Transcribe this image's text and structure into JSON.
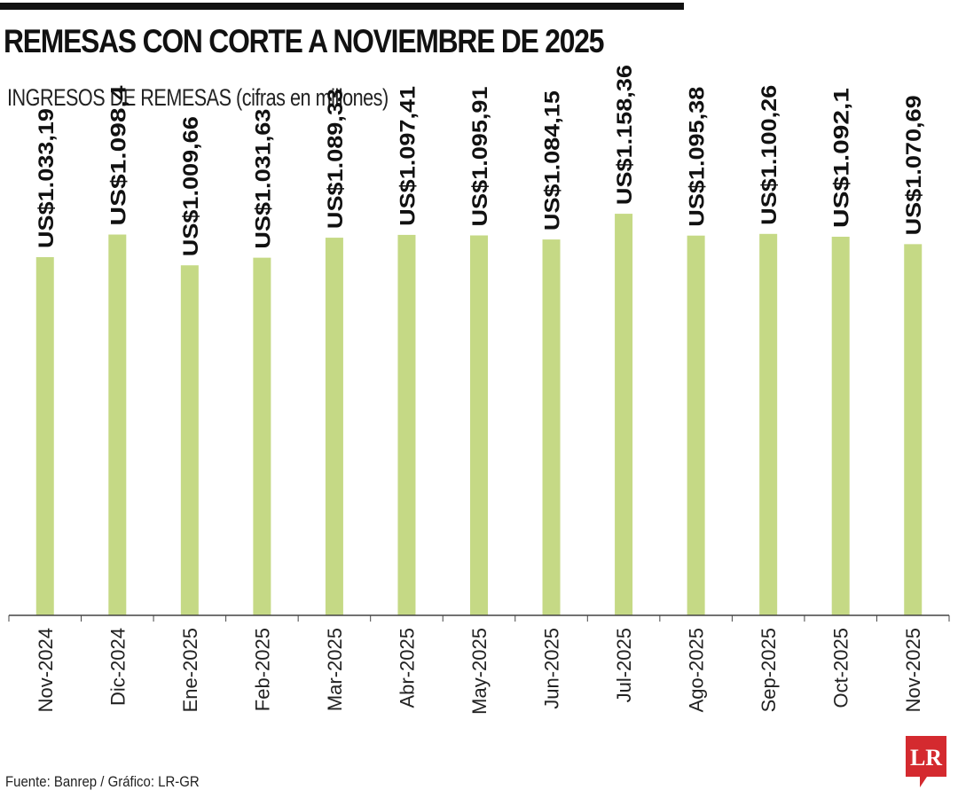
{
  "chart_data": {
    "type": "bar",
    "title": "REMESAS CON CORTE A NOVIEMBRE DE 2025",
    "subtitle": "INGRESOS DE REMESAS (cifras en millones)",
    "categories": [
      "Nov-2024",
      "Dic-2024",
      "Ene-2025",
      "Feb-2025",
      "Mar-2025",
      "Abr-2025",
      "May-2025",
      "Jun-2025",
      "Jul-2025",
      "Ago-2025",
      "Sep-2025",
      "Oct-2025",
      "Nov-2025"
    ],
    "values": [
      1033.19,
      1098.4,
      1009.66,
      1031.63,
      1089.33,
      1097.41,
      1095.91,
      1084.15,
      1158.36,
      1095.38,
      1100.26,
      1092.1,
      1070.69
    ],
    "value_labels": [
      "US$1.033,19",
      "US$1.098,4",
      "US$1.009,66",
      "US$1.031,63",
      "US$1.089,33",
      "US$1.097,41",
      "US$1.095,91",
      "US$1.084,15",
      "US$1.158,36",
      "US$1.095,38",
      "US$1.100,26",
      "US$1.092,1",
      "US$1.070,69"
    ],
    "xlabel": "",
    "ylabel": "",
    "grid": false,
    "legend": "none",
    "bar_color": "#c5d985"
  },
  "source": "Fuente: Banrep / Gráfico: LR-GR",
  "logo": {
    "text": "LR",
    "color": "#d42a2f",
    "icon": "lr-logo-icon"
  }
}
